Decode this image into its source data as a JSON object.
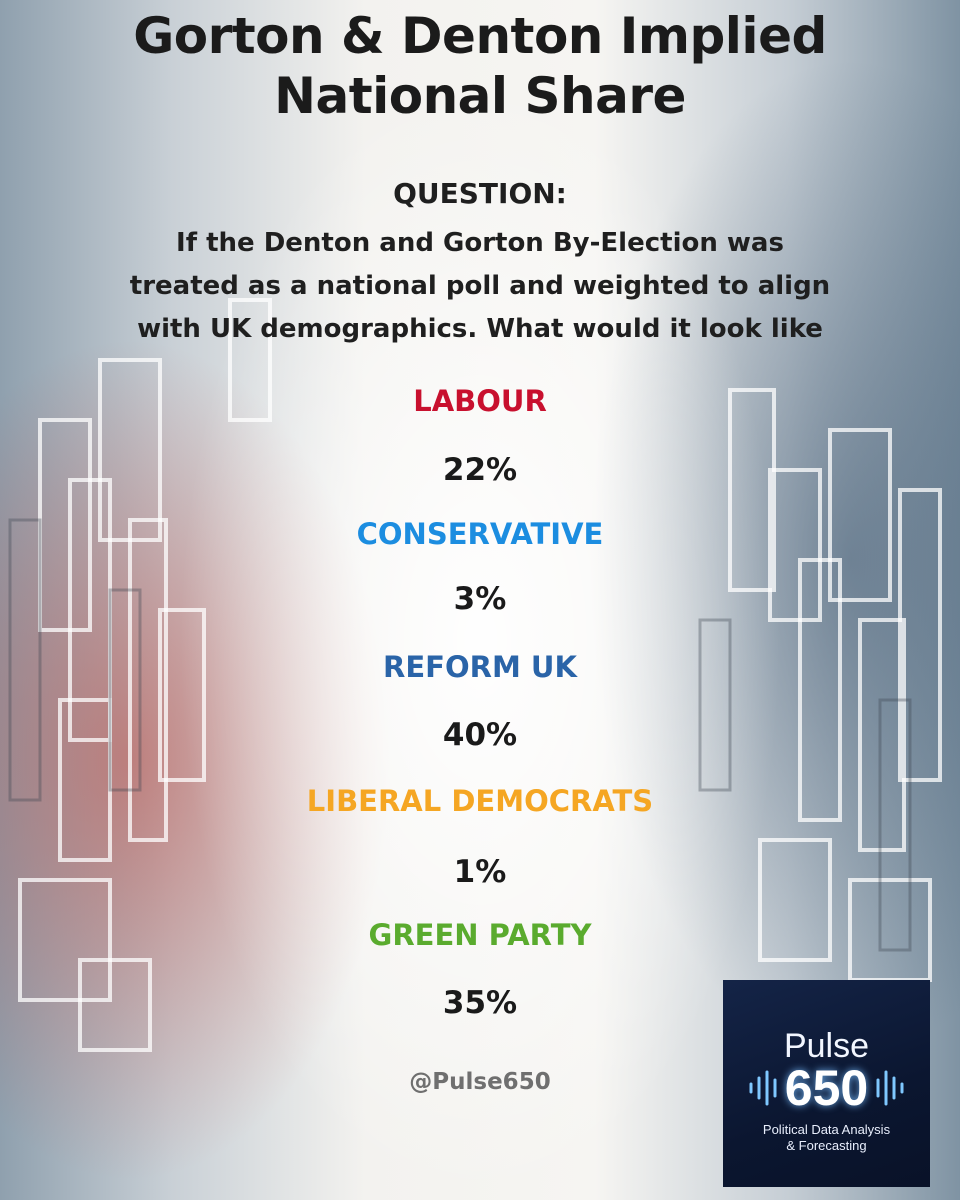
{
  "title": {
    "line1": "Gorton & Denton Implied",
    "line2": "National Share"
  },
  "question": {
    "label": "QUESTION:",
    "lines": [
      "If the Denton and Gorton By-Election was",
      "treated as a national poll and weighted to align",
      "with UK demographics. What would it look like"
    ]
  },
  "parties": [
    {
      "name": "LABOUR",
      "share": "22%",
      "color": "#c8102e"
    },
    {
      "name": "CONSERVATIVE",
      "share": "3%",
      "color": "#1c8de0"
    },
    {
      "name": "REFORM UK",
      "share": "40%",
      "color": "#2a64a8"
    },
    {
      "name": "LIBERAL DEMOCRATS",
      "share": "1%",
      "color": "#f5a623"
    },
    {
      "name": "GREEN PARTY",
      "share": "35%",
      "color": "#5aab2e"
    }
  ],
  "handle": "@Pulse650",
  "logo": {
    "word": "Pulse",
    "number": "650",
    "tagline1": "Political Data Analysis",
    "tagline2": "& Forecasting"
  }
}
